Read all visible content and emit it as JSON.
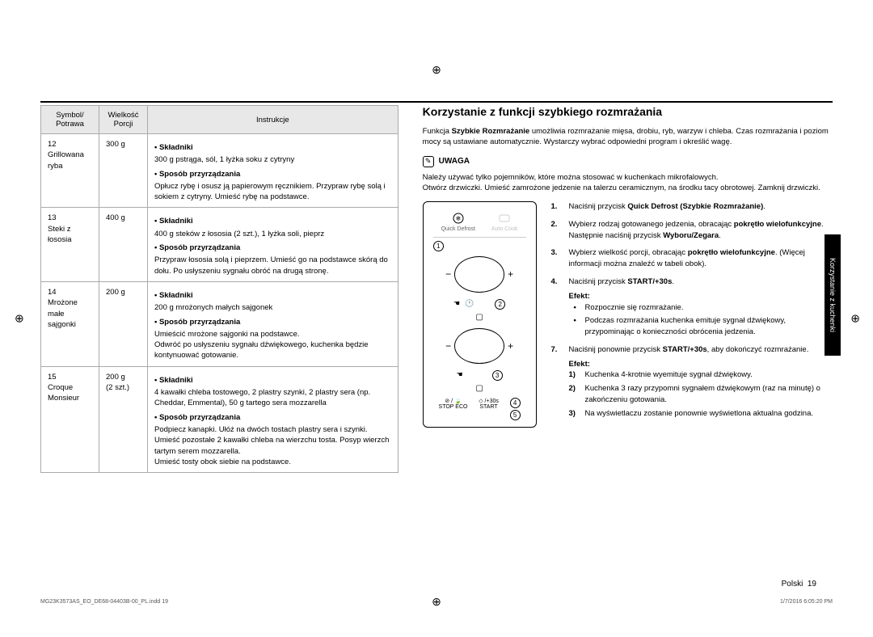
{
  "registration_glyph": "⊕",
  "table": {
    "headers": {
      "col1": "Symbol/\nPotrawa",
      "col2": "Wielkość\nPorcji",
      "col3": "Instrukcje"
    },
    "rows": [
      {
        "symbol": "12\nGrillowana ryba",
        "portion": "300 g",
        "skladniki_head": "Składniki",
        "skladniki": "300 g pstrąga, sól, 1 łyżka soku z cytryny",
        "sposob_head": "Sposób przyrządzania",
        "sposob": "Opłucz rybę i osusz ją papierowym ręcznikiem. Przypraw rybę solą i sokiem z cytryny. Umieść rybę na podstawce."
      },
      {
        "symbol": "13\nSteki z łososia",
        "portion": "400 g",
        "skladniki_head": "Składniki",
        "skladniki": "400 g steków z łososia (2 szt.), 1 łyżka soli, pieprz",
        "sposob_head": "Sposób przyrządzania",
        "sposob": "Przypraw łososia solą i pieprzem. Umieść go na podstawce skórą do dołu. Po usłyszeniu sygnału obróć na drugą stronę."
      },
      {
        "symbol": "14\nMrożone małe sajgonki",
        "portion": "200 g",
        "skladniki_head": "Składniki",
        "skladniki": "200 g mrożonych małych sajgonek",
        "sposob_head": "Sposób przyrządzania",
        "sposob": "Umieścić mrożone sajgonki na podstawce.\nOdwróć po usłyszeniu sygnału dźwiękowego, kuchenka będzie kontynuować gotowanie."
      },
      {
        "symbol": "15\nCroque Monsieur",
        "portion": "200 g\n(2 szt.)",
        "skladniki_head": "Składniki",
        "skladniki": "4 kawałki chleba tostowego, 2 plastry szynki, 2 plastry sera (np. Cheddar, Emmental), 50 g tartego sera mozzarella",
        "sposob_head": "Sposób przyrządzania",
        "sposob": "Podpiecz kanapki. Ułóż na dwóch tostach plastry sera i szynki. Umieść pozostałe 2 kawałki chleba na wierzchu tosta. Posyp wierzch tartym serem mozzarella.\nUmieść tosty obok siebie na podstawce."
      }
    ]
  },
  "heading": "Korzystanie z funkcji szybkiego rozmrażania",
  "intro": "Funkcja Szybkie Rozmrażanie umożliwia rozmrażanie mięsa, drobiu, ryb, warzyw i chleba. Czas rozmrażania i poziom mocy są ustawiane automatycznie. Wystarczy wybrać odpowiedni program i określić wagę.",
  "intro_bold": "Szybkie Rozmrażanie",
  "uwaga_label": "UWAGA",
  "uwaga_body": "Należy używać tylko pojemników, które można stosować w kuchenkach mikrofalowych.\nOtwórz drzwiczki. Umieść zamrożone jedzenie na talerzu ceramicznym, na środku tacy obrotowej. Zamknij drzwiczki.",
  "panel": {
    "quick_defrost": "Quick Defrost",
    "auto_cook": "Auto Cook",
    "stop": "STOP",
    "eco": "ECO",
    "start": "START",
    "start30": "/+30s",
    "nums": [
      "1",
      "2",
      "3",
      "4",
      "5"
    ]
  },
  "steps": [
    {
      "pre": "Naciśnij przycisk ",
      "bold": "Quick Defrost (Szybkie Rozmrażanie)",
      "post": "."
    },
    {
      "pre": "Wybierz rodzaj gotowanego jedzenia, obracając ",
      "bold": "pokrętło wielofunkcyjne",
      "post": ". Następnie naciśnij przycisk ",
      "bold2": "Wyboru/Zegara",
      "post2": "."
    },
    {
      "pre": "Wybierz wielkość porcji, obracając ",
      "bold": "pokrętło wielofunkcyjne",
      "post": ". (Więcej informacji można znaleźć w tabeli obok)."
    },
    {
      "pre": "Naciśnij przycisk ",
      "bold": "START/+30s",
      "post": "."
    }
  ],
  "efekt_label": "Efekt:",
  "effect1": [
    "Rozpocznie się rozmrażanie.",
    "Podczas rozmrażania kuchenka emituje sygnał dźwiękowy, przypominając o konieczności obrócenia jedzenia."
  ],
  "step5": {
    "pre": "Naciśnij ponownie przycisk ",
    "bold": "START/+30s",
    "post": ", aby dokończyć rozmrażanie."
  },
  "effect2": [
    "Kuchenka 4-krotnie wyemituje sygnał dźwiękowy.",
    "Kuchenka 3 razy przypomni sygnałem dźwiękowym (raz na minutę) o zakończeniu gotowania.",
    "Na wyświetlaczu zostanie ponownie wyświetlona aktualna godzina."
  ],
  "side_tab": "Korzystanie z kuchenki",
  "footer_lang": "Polski",
  "footer_page": "19",
  "footer_file": "MG23K3573AS_EO_DE68-04403B-00_PL.indd   19",
  "footer_date": "1/7/2016   6:05:20 PM"
}
